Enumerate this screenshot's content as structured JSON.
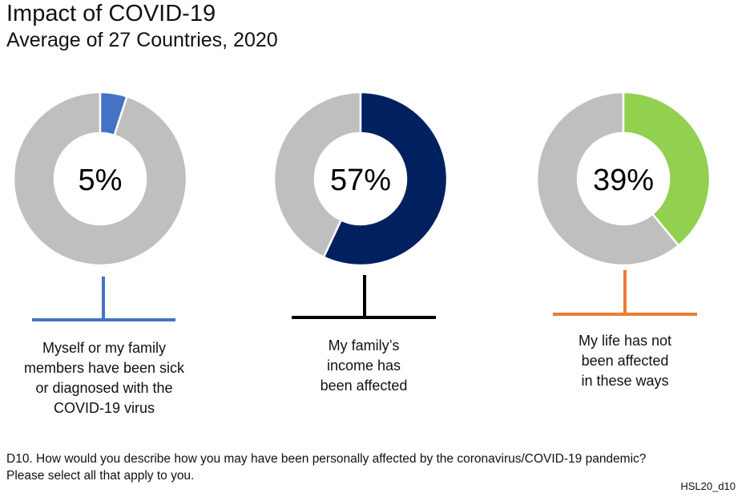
{
  "chart_data": {
    "type": "pie",
    "variant": "donut",
    "title": "Impact of COVID-19",
    "subtitle": "Average of 27 Countries, 2020",
    "series": [
      {
        "name": "Myself or my family members have been sick or diagnosed with the COVID-19 virus",
        "value": 5,
        "label": "5%",
        "color": "#4472C4",
        "rest_color": "#BFBFBF",
        "bar_color": "#4472C4",
        "caption_lines": [
          "Myself or my family",
          "members have been sick",
          "or diagnosed with the",
          "COVID-19 virus"
        ]
      },
      {
        "name": "My family's income has been affected",
        "value": 57,
        "label": "57%",
        "color": "#002060",
        "rest_color": "#BFBFBF",
        "bar_color": "#000000",
        "caption_lines": [
          "My family’s",
          "income has",
          "been affected"
        ]
      },
      {
        "name": "My life has not been affected in these ways",
        "value": 39,
        "label": "39%",
        "color": "#92D050",
        "rest_color": "#BFBFBF",
        "bar_color": "#ED7D31",
        "caption_lines": [
          "My life has not",
          "been affected",
          "in these ways"
        ]
      }
    ]
  },
  "footnote": {
    "line1": "D10. How would you describe how you may have been personally affected by the coronavirus/COVID-19 pandemic?",
    "line2": "Please select all that apply to you."
  },
  "code": "HSL20_d10"
}
